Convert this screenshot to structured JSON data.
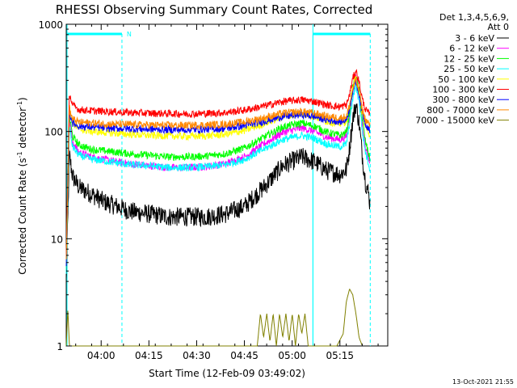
{
  "chart_data": {
    "type": "line",
    "title": "RHESSI Observing Summary Count Rates, Corrected",
    "xlabel": "Start Time (12-Feb-09 03:49:02)",
    "ylabel": "Corrected Count Rate (s",
    "ylabel_sup1": "-1",
    "ylabel_mid": " detector",
    "ylabel_sup2": "-1",
    "ylabel_end": ")",
    "yscale": "log",
    "ylim": [
      1,
      1000
    ],
    "xlim": [
      0,
      101
    ],
    "x_unit": "minutes after 03:49:02",
    "xticks": [
      {
        "x": 10.97,
        "label": "04:00"
      },
      {
        "x": 25.97,
        "label": "04:15"
      },
      {
        "x": 40.97,
        "label": "04:30"
      },
      {
        "x": 55.97,
        "label": "04:45"
      },
      {
        "x": 70.97,
        "label": "05:00"
      },
      {
        "x": 85.97,
        "label": "05:15"
      }
    ],
    "yticks": [
      {
        "y": 1,
        "label": "1"
      },
      {
        "y": 10,
        "label": "10"
      },
      {
        "y": 100,
        "label": "100"
      },
      {
        "y": 1000,
        "label": "1000"
      }
    ],
    "legend": {
      "placement": "right",
      "header": [
        "Det 1,3,4,5,6,9,",
        "Att 0"
      ]
    },
    "night_markers": [
      {
        "x": 17.5,
        "label": "N"
      },
      {
        "x": 77.5
      },
      {
        "x": 95.5
      }
    ],
    "annotation_flag_x": 18.5,
    "annotation_flag_label": "N",
    "footer": "13-Oct-2021 21:55",
    "series": [
      {
        "name": "3 - 6 keV",
        "color": "#000000",
        "points": [
          [
            0,
            4
          ],
          [
            1,
            60
          ],
          [
            2,
            38
          ],
          [
            4,
            30
          ],
          [
            8,
            26
          ],
          [
            12,
            22
          ],
          [
            16,
            20
          ],
          [
            20,
            18
          ],
          [
            26,
            17
          ],
          [
            32,
            16
          ],
          [
            38,
            16
          ],
          [
            44,
            16
          ],
          [
            50,
            17
          ],
          [
            56,
            20
          ],
          [
            62,
            30
          ],
          [
            68,
            48
          ],
          [
            74,
            58
          ],
          [
            78,
            52
          ],
          [
            82,
            43
          ],
          [
            86,
            40
          ],
          [
            88,
            44
          ],
          [
            89,
            70
          ],
          [
            90,
            130
          ],
          [
            91,
            180
          ],
          [
            92,
            120
          ],
          [
            93,
            60
          ],
          [
            94,
            34
          ],
          [
            95,
            26
          ],
          [
            95.5,
            20
          ]
        ]
      },
      {
        "name": "6 - 12 keV",
        "color": "#ff00ff",
        "points": [
          [
            0,
            6
          ],
          [
            1,
            130
          ],
          [
            2,
            80
          ],
          [
            4,
            64
          ],
          [
            8,
            58
          ],
          [
            12,
            55
          ],
          [
            16,
            52
          ],
          [
            20,
            50
          ],
          [
            26,
            48
          ],
          [
            32,
            46
          ],
          [
            38,
            46
          ],
          [
            44,
            47
          ],
          [
            50,
            50
          ],
          [
            56,
            58
          ],
          [
            62,
            76
          ],
          [
            68,
            98
          ],
          [
            74,
            108
          ],
          [
            78,
            100
          ],
          [
            82,
            88
          ],
          [
            86,
            84
          ],
          [
            88,
            90
          ],
          [
            89,
            140
          ],
          [
            90,
            250
          ],
          [
            91,
            330
          ],
          [
            92,
            230
          ],
          [
            93,
            120
          ],
          [
            94,
            70
          ],
          [
            95,
            55
          ],
          [
            95.5,
            45
          ]
        ]
      },
      {
        "name": "12 - 25 keV",
        "color": "#00ff00",
        "points": [
          [
            0,
            5
          ],
          [
            1,
            140
          ],
          [
            2,
            90
          ],
          [
            4,
            75
          ],
          [
            8,
            68
          ],
          [
            12,
            66
          ],
          [
            16,
            64
          ],
          [
            20,
            62
          ],
          [
            26,
            60
          ],
          [
            32,
            58
          ],
          [
            38,
            58
          ],
          [
            44,
            59
          ],
          [
            50,
            62
          ],
          [
            56,
            70
          ],
          [
            62,
            88
          ],
          [
            68,
            110
          ],
          [
            74,
            120
          ],
          [
            78,
            112
          ],
          [
            82,
            98
          ],
          [
            86,
            92
          ],
          [
            88,
            98
          ],
          [
            89,
            150
          ],
          [
            90,
            260
          ],
          [
            91,
            340
          ],
          [
            92,
            240
          ],
          [
            93,
            130
          ],
          [
            94,
            80
          ],
          [
            95,
            62
          ],
          [
            95.5,
            52
          ]
        ]
      },
      {
        "name": "25 - 50 keV",
        "color": "#00ffff",
        "points": [
          [
            0,
            5
          ],
          [
            1,
            110
          ],
          [
            2,
            72
          ],
          [
            4,
            60
          ],
          [
            8,
            55
          ],
          [
            12,
            53
          ],
          [
            16,
            51
          ],
          [
            20,
            49
          ],
          [
            26,
            48
          ],
          [
            32,
            46
          ],
          [
            38,
            46
          ],
          [
            44,
            47
          ],
          [
            50,
            49
          ],
          [
            56,
            55
          ],
          [
            62,
            68
          ],
          [
            68,
            84
          ],
          [
            74,
            92
          ],
          [
            78,
            86
          ],
          [
            82,
            76
          ],
          [
            86,
            72
          ],
          [
            88,
            76
          ],
          [
            89,
            118
          ],
          [
            90,
            200
          ],
          [
            91,
            270
          ],
          [
            92,
            190
          ],
          [
            93,
            102
          ],
          [
            94,
            64
          ],
          [
            95,
            50
          ],
          [
            95.5,
            42
          ]
        ]
      },
      {
        "name": "50 - 100 keV",
        "color": "#ffff00",
        "points": [
          [
            0,
            6
          ],
          [
            1,
            170
          ],
          [
            2,
            120
          ],
          [
            4,
            105
          ],
          [
            8,
            100
          ],
          [
            12,
            98
          ],
          [
            16,
            96
          ],
          [
            20,
            94
          ],
          [
            26,
            92
          ],
          [
            32,
            91
          ],
          [
            38,
            90
          ],
          [
            44,
            91
          ],
          [
            50,
            94
          ],
          [
            56,
            102
          ],
          [
            62,
            118
          ],
          [
            68,
            138
          ],
          [
            74,
            146
          ],
          [
            78,
            138
          ],
          [
            82,
            124
          ],
          [
            86,
            118
          ],
          [
            88,
            124
          ],
          [
            89,
            170
          ],
          [
            90,
            260
          ],
          [
            91,
            320
          ],
          [
            92,
            240
          ],
          [
            93,
            150
          ],
          [
            94,
            110
          ],
          [
            95,
            96
          ],
          [
            95.5,
            88
          ]
        ]
      },
      {
        "name": "100 - 300 keV",
        "color": "#ff0000",
        "points": [
          [
            0,
            7
          ],
          [
            1,
            230
          ],
          [
            2,
            175
          ],
          [
            4,
            160
          ],
          [
            8,
            156
          ],
          [
            12,
            154
          ],
          [
            16,
            152
          ],
          [
            20,
            150
          ],
          [
            26,
            148
          ],
          [
            32,
            147
          ],
          [
            38,
            146
          ],
          [
            44,
            147
          ],
          [
            50,
            150
          ],
          [
            56,
            158
          ],
          [
            62,
            172
          ],
          [
            68,
            190
          ],
          [
            74,
            198
          ],
          [
            78,
            190
          ],
          [
            82,
            176
          ],
          [
            86,
            170
          ],
          [
            88,
            176
          ],
          [
            89,
            220
          ],
          [
            90,
            310
          ],
          [
            91,
            370
          ],
          [
            92,
            290
          ],
          [
            93,
            200
          ],
          [
            94,
            160
          ],
          [
            95,
            148
          ],
          [
            95.5,
            140
          ]
        ]
      },
      {
        "name": "300 - 800 keV",
        "color": "#0000ff",
        "points": [
          [
            0,
            6
          ],
          [
            1,
            150
          ],
          [
            2,
            120
          ],
          [
            4,
            112
          ],
          [
            8,
            110
          ],
          [
            12,
            108
          ],
          [
            16,
            107
          ],
          [
            20,
            106
          ],
          [
            26,
            105
          ],
          [
            32,
            104
          ],
          [
            38,
            104
          ],
          [
            44,
            105
          ],
          [
            50,
            107
          ],
          [
            56,
            113
          ],
          [
            62,
            124
          ],
          [
            68,
            138
          ],
          [
            74,
            144
          ],
          [
            78,
            138
          ],
          [
            82,
            128
          ],
          [
            86,
            124
          ],
          [
            88,
            128
          ],
          [
            89,
            165
          ],
          [
            90,
            240
          ],
          [
            91,
            290
          ],
          [
            92,
            224
          ],
          [
            93,
            150
          ],
          [
            94,
            118
          ],
          [
            95,
            108
          ],
          [
            95.5,
            102
          ]
        ]
      },
      {
        "name": "800 - 7000 keV",
        "color": "#ff8800",
        "points": [
          [
            0,
            6
          ],
          [
            1,
            160
          ],
          [
            2,
            130
          ],
          [
            4,
            122
          ],
          [
            8,
            120
          ],
          [
            12,
            118
          ],
          [
            16,
            117
          ],
          [
            20,
            116
          ],
          [
            26,
            115
          ],
          [
            32,
            114
          ],
          [
            38,
            114
          ],
          [
            44,
            115
          ],
          [
            50,
            117
          ],
          [
            56,
            123
          ],
          [
            62,
            134
          ],
          [
            68,
            148
          ],
          [
            74,
            154
          ],
          [
            78,
            148
          ],
          [
            82,
            138
          ],
          [
            86,
            134
          ],
          [
            88,
            138
          ],
          [
            89,
            175
          ],
          [
            90,
            250
          ],
          [
            91,
            300
          ],
          [
            92,
            232
          ],
          [
            93,
            160
          ],
          [
            94,
            128
          ],
          [
            95,
            118
          ],
          [
            95.5,
            112
          ]
        ]
      },
      {
        "name": "7000 - 15000 keV",
        "color": "#808000",
        "points": [
          [
            0,
            1
          ],
          [
            0.5,
            2.2
          ],
          [
            1,
            1
          ],
          [
            60,
            1
          ],
          [
            61,
            2.0
          ],
          [
            62,
            1.2
          ],
          [
            63,
            2.0
          ],
          [
            64,
            1.1
          ],
          [
            65,
            2.0
          ],
          [
            66,
            1.0
          ],
          [
            67,
            2.0
          ],
          [
            68,
            1.2
          ],
          [
            69,
            2.0
          ],
          [
            70,
            1.1
          ],
          [
            71,
            2.0
          ],
          [
            72,
            1.0
          ],
          [
            73,
            2.0
          ],
          [
            74,
            1.3
          ],
          [
            75,
            2.0
          ],
          [
            76,
            1.0
          ],
          [
            77,
            1.0
          ],
          [
            85,
            1
          ],
          [
            87,
            1.3
          ],
          [
            88,
            2.6
          ],
          [
            89,
            3.4
          ],
          [
            90,
            3.0
          ],
          [
            91,
            2.0
          ],
          [
            92,
            1.2
          ],
          [
            93,
            1
          ]
        ]
      }
    ]
  }
}
